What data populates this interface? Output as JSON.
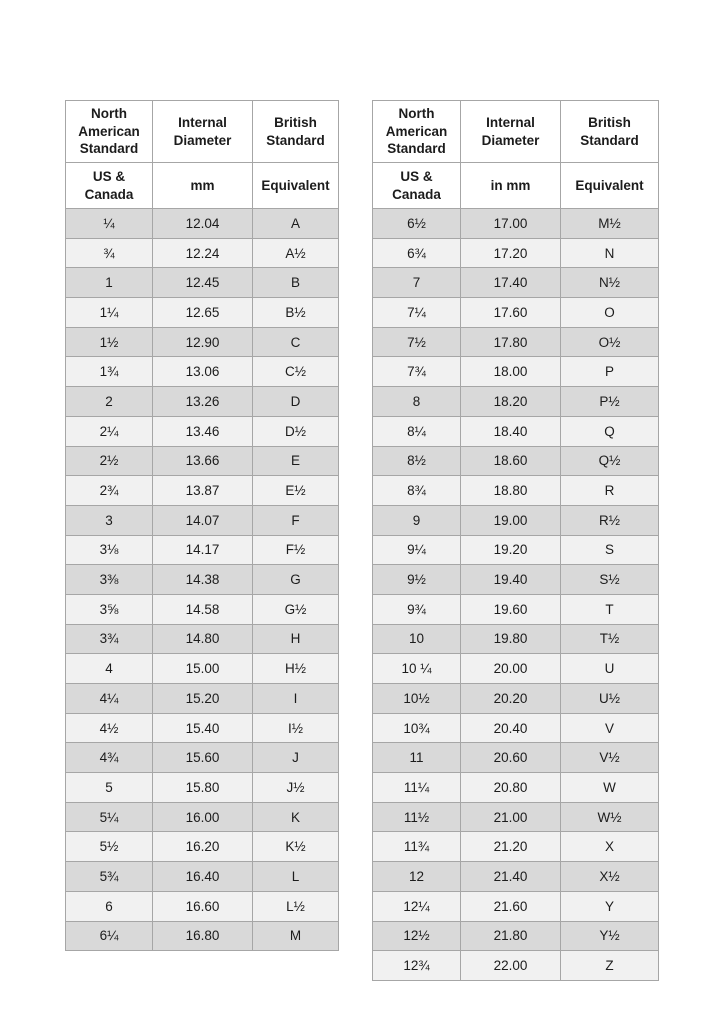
{
  "page": {
    "description": "Ring size conversion chart: North American (US & Canada) sizes to internal diameter in mm and British standard equivalents",
    "background": "#ffffff"
  },
  "colors": {
    "row_dark": "#d9d9d9",
    "row_light": "#f1f1f1",
    "border": "#a6a6a6",
    "text": "#1c1c1c",
    "header_background": "#ffffff"
  },
  "tables": [
    {
      "header_row1": [
        "North American Standard",
        "Internal Diameter",
        "British Standard"
      ],
      "header_row2": [
        "US & Canada",
        "mm",
        "Equivalent"
      ],
      "rows": [
        [
          "¼",
          "12.04",
          "A"
        ],
        [
          "¾",
          "12.24",
          "A½"
        ],
        [
          "1",
          "12.45",
          "B"
        ],
        [
          "1¼",
          "12.65",
          "B½"
        ],
        [
          "1½",
          "12.90",
          "C"
        ],
        [
          "1¾",
          "13.06",
          "C½"
        ],
        [
          "2",
          "13.26",
          "D"
        ],
        [
          "2¼",
          "13.46",
          "D½"
        ],
        [
          "2½",
          "13.66",
          "E"
        ],
        [
          "2¾",
          "13.87",
          "E½"
        ],
        [
          "3",
          "14.07",
          "F"
        ],
        [
          "3⅛",
          "14.17",
          "F½"
        ],
        [
          "3⅜",
          "14.38",
          "G"
        ],
        [
          "3⅝",
          "14.58",
          "G½"
        ],
        [
          "3¾",
          "14.80",
          "H"
        ],
        [
          "4",
          "15.00",
          "H½"
        ],
        [
          "4¼",
          "15.20",
          "I"
        ],
        [
          "4½",
          "15.40",
          "I½"
        ],
        [
          "4¾",
          "15.60",
          "J"
        ],
        [
          "5",
          "15.80",
          "J½"
        ],
        [
          "5¼",
          "16.00",
          "K"
        ],
        [
          "5½",
          "16.20",
          "K½"
        ],
        [
          "5¾",
          "16.40",
          "L"
        ],
        [
          "6",
          "16.60",
          "L½"
        ],
        [
          "6¼",
          "16.80",
          "M"
        ]
      ]
    },
    {
      "header_row1": [
        "North American Standard",
        "Internal Diameter",
        "British Standard"
      ],
      "header_row2": [
        "US & Canada",
        "in mm",
        "Equivalent"
      ],
      "rows": [
        [
          "6½",
          "17.00",
          "M½"
        ],
        [
          "6¾",
          "17.20",
          "N"
        ],
        [
          "7",
          "17.40",
          "N½"
        ],
        [
          "7¼",
          "17.60",
          "O"
        ],
        [
          "7½",
          "17.80",
          "O½"
        ],
        [
          "7¾",
          "18.00",
          "P"
        ],
        [
          "8",
          "18.20",
          "P½"
        ],
        [
          "8¼",
          "18.40",
          "Q"
        ],
        [
          "8½",
          "18.60",
          "Q½"
        ],
        [
          "8¾",
          "18.80",
          "R"
        ],
        [
          "9",
          "19.00",
          "R½"
        ],
        [
          "9¼",
          "19.20",
          "S"
        ],
        [
          "9½",
          "19.40",
          "S½"
        ],
        [
          "9¾",
          "19.60",
          "T"
        ],
        [
          "10",
          "19.80",
          "T½"
        ],
        [
          "10 ¼",
          "20.00",
          "U"
        ],
        [
          "10½",
          "20.20",
          "U½"
        ],
        [
          "10¾",
          "20.40",
          "V"
        ],
        [
          "11",
          "20.60",
          "V½"
        ],
        [
          "11¼",
          "20.80",
          "W"
        ],
        [
          "11½",
          "21.00",
          "W½"
        ],
        [
          "11¾",
          "21.20",
          "X"
        ],
        [
          "12",
          "21.40",
          "X½"
        ],
        [
          "12¼",
          "21.60",
          "Y"
        ],
        [
          "12½",
          "21.80",
          "Y½"
        ],
        [
          "12¾",
          "22.00",
          "Z"
        ]
      ]
    }
  ]
}
